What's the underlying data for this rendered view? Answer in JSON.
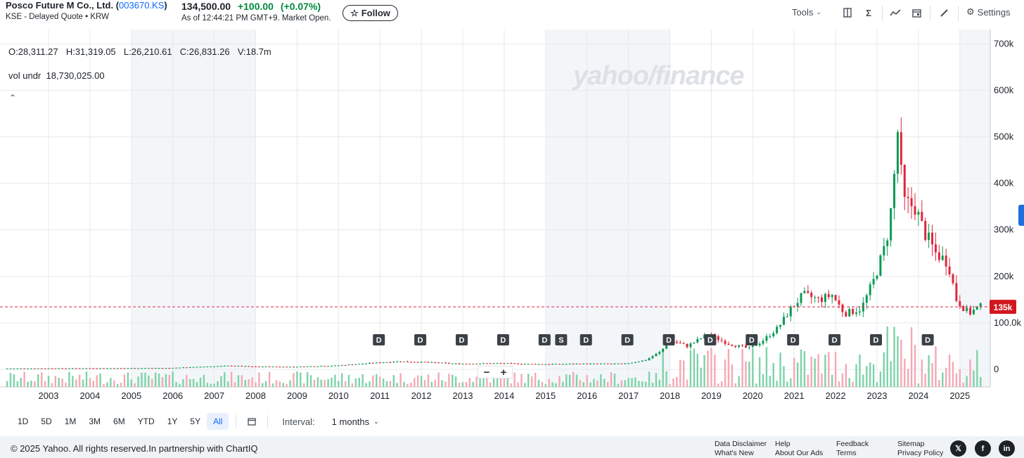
{
  "header": {
    "company": "Posco Future M Co., Ltd. (",
    "ticker": "003670.KS",
    "ticker_close": ")",
    "subtitle": "KSE - Delayed Quote • KRW",
    "last_price": "134,500.00",
    "change": "+100.00",
    "change_pct": "(+0.07%)",
    "as_of": "As of 12:44:21 PM GMT+9. Market Open.",
    "follow_label": "Follow"
  },
  "toolbar": {
    "tools_label": "Tools",
    "settings_label": "Settings",
    "icons": [
      "compare-icon",
      "sigma-icon",
      "indicator-icon",
      "calendar-event-icon",
      "draw-icon",
      "gear-icon"
    ]
  },
  "chart": {
    "ohlc_text": "O:28,311.27  H:31,319.05  L:26,210.61  C:26,831.26  V:18.7m",
    "vol_label": "vol undr",
    "vol_value": "18,730,025.00",
    "watermark": "yahoo/finance",
    "current_price_label": "135k",
    "colors": {
      "up": "#0a9a55",
      "down": "#e0263b",
      "up_vol": "#7dd3a8",
      "down_vol": "#f5a9b3",
      "grid": "#e6e9ec",
      "shade": "#f3f6f9",
      "ref_line": "#e0263b"
    }
  },
  "chart_data": {
    "type": "candlestick",
    "interval": "1 months",
    "current_price": 134500,
    "y_axis_labels": [
      "700k",
      "600k",
      "500k",
      "400k",
      "300k",
      "200k",
      "100.0k",
      "0"
    ],
    "y_ticks": [
      700000,
      600000,
      500000,
      400000,
      300000,
      200000,
      100000,
      0
    ],
    "x_axis_labels": [
      "2003",
      "2004",
      "2005",
      "2006",
      "2007",
      "2008",
      "2009",
      "2010",
      "2011",
      "2012",
      "2013",
      "2014",
      "2015",
      "2016",
      "2017",
      "2018",
      "2019",
      "2020",
      "2021",
      "2022",
      "2023",
      "2024",
      "2025"
    ],
    "events": [
      {
        "label": "D",
        "year": 2011.0
      },
      {
        "label": "D",
        "year": 2012.0
      },
      {
        "label": "D",
        "year": 2013.0
      },
      {
        "label": "D",
        "year": 2014.0
      },
      {
        "label": "D",
        "year": 2015.0
      },
      {
        "label": "S",
        "year": 2015.4
      },
      {
        "label": "D",
        "year": 2016.0
      },
      {
        "label": "D",
        "year": 2017.0
      },
      {
        "label": "D",
        "year": 2018.0
      },
      {
        "label": "D",
        "year": 2019.0
      },
      {
        "label": "D",
        "year": 2020.0
      },
      {
        "label": "D",
        "year": 2021.0
      },
      {
        "label": "D",
        "year": 2022.0
      },
      {
        "label": "D",
        "year": 2023.0
      },
      {
        "label": "D",
        "year": 2024.25
      }
    ],
    "price_points": [
      [
        2002.0,
        2000
      ],
      [
        2004.0,
        2500
      ],
      [
        2006.0,
        3000
      ],
      [
        2007.5,
        8000
      ],
      [
        2008.0,
        6000
      ],
      [
        2009.0,
        5500
      ],
      [
        2010.0,
        8000
      ],
      [
        2010.8,
        13000
      ],
      [
        2011.5,
        17000
      ],
      [
        2012.0,
        16000
      ],
      [
        2013.0,
        12000
      ],
      [
        2014.0,
        13000
      ],
      [
        2015.0,
        11000
      ],
      [
        2016.0,
        12000
      ],
      [
        2017.0,
        12000
      ],
      [
        2017.5,
        20000
      ],
      [
        2017.9,
        40000
      ],
      [
        2018.0,
        65000
      ],
      [
        2018.5,
        50000
      ],
      [
        2019.0,
        75000
      ],
      [
        2019.5,
        55000
      ],
      [
        2020.0,
        45000
      ],
      [
        2020.3,
        60000
      ],
      [
        2020.7,
        90000
      ],
      [
        2021.0,
        130000
      ],
      [
        2021.3,
        160000
      ],
      [
        2021.7,
        150000
      ],
      [
        2022.0,
        160000
      ],
      [
        2022.3,
        120000
      ],
      [
        2022.7,
        130000
      ],
      [
        2023.0,
        190000
      ],
      [
        2023.3,
        270000
      ],
      [
        2023.45,
        360000
      ],
      [
        2023.6,
        530000
      ],
      [
        2023.7,
        360000
      ],
      [
        2024.0,
        350000
      ],
      [
        2024.2,
        300000
      ],
      [
        2024.5,
        250000
      ],
      [
        2024.8,
        230000
      ],
      [
        2025.0,
        150000
      ],
      [
        2025.3,
        120000
      ],
      [
        2025.55,
        134500
      ]
    ]
  },
  "ranges": {
    "buttons": [
      "1D",
      "5D",
      "1M",
      "3M",
      "6M",
      "YTD",
      "1Y",
      "5Y",
      "All"
    ],
    "active": "All",
    "interval_label": "Interval:",
    "interval_value": "1 months"
  },
  "footer": {
    "copyright": "© 2025 Yahoo. All rights reserved.In partnership with ChartIQ",
    "links": [
      [
        "Data Disclaimer",
        "What's New"
      ],
      [
        "Help",
        "About Our Ads"
      ],
      [
        "Feedback",
        "Terms"
      ],
      [
        "Sitemap",
        "Privacy Policy"
      ]
    ],
    "social": [
      "x-icon",
      "facebook-icon",
      "linkedin-icon"
    ]
  }
}
